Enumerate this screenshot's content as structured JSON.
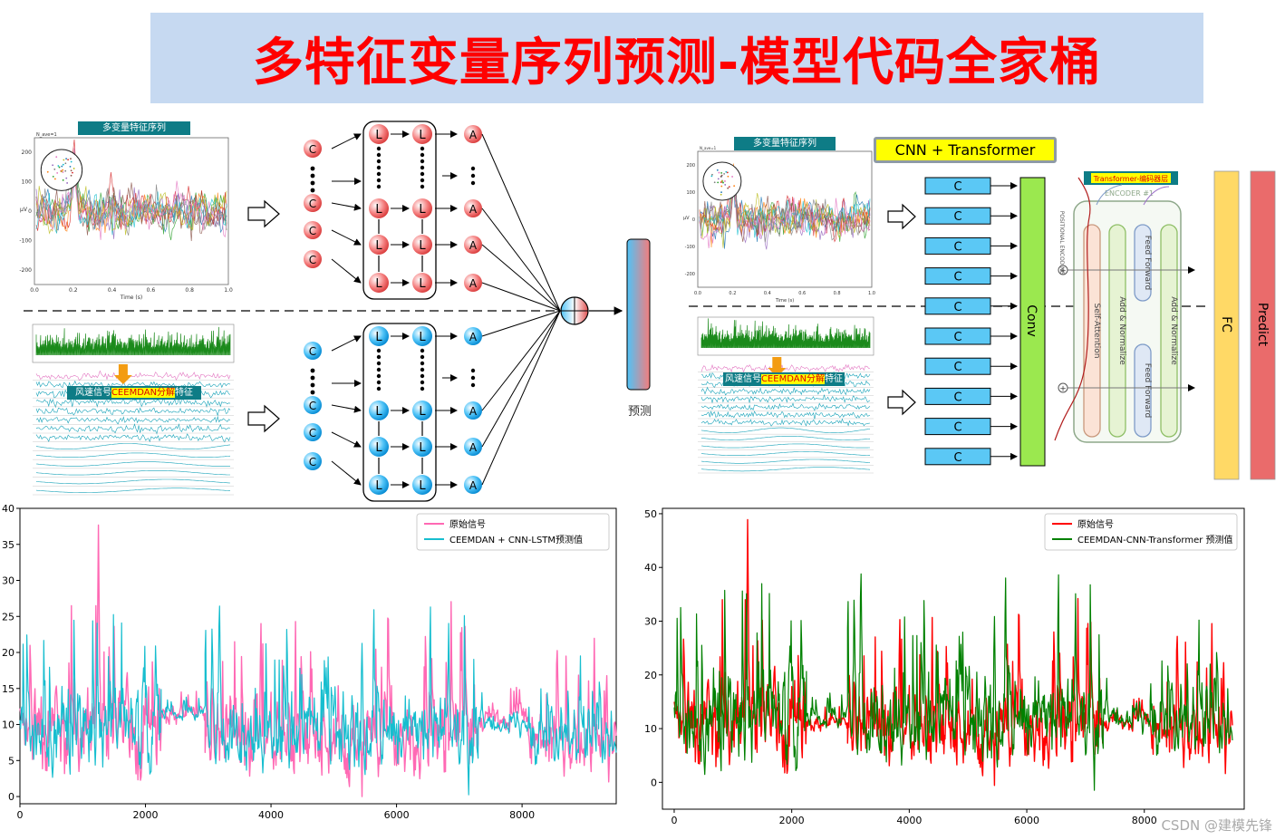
{
  "banner": {
    "title": "多特征变量序列预测-模型代码全家桶"
  },
  "left_top": {
    "eeg_tag": "多变量特征序列",
    "eeg_axis": {
      "yticks": [
        "200",
        "100",
        "0",
        "-100",
        "-200"
      ],
      "xticks": [
        "0.0",
        "0.2",
        "0.4",
        "0.6",
        "0.8",
        "1.0"
      ],
      "xlabel": "Time (s)",
      "ylabel": "μV",
      "corner": "N_ave=1"
    },
    "ceemdan_tag_prefix": "风速信号",
    "ceemdan_tag_highlight": "CEEMDAN分解",
    "ceemdan_tag_suffix": "特征"
  },
  "lstm_block": {
    "c": "C",
    "l": "L",
    "a": "A",
    "dots": "⋮",
    "output_label": "预测"
  },
  "right_top": {
    "title": "CNN + Transformer",
    "eeg_tag": "多变量特征序列",
    "ceemdan_tag_prefix": "风速信号",
    "ceemdan_tag_highlight": "CEEMDAN分解",
    "ceemdan_tag_suffix": "特征",
    "c_label": "C",
    "conv_label": "Conv",
    "encoder_tag": "Transformer-编码器层",
    "encoder_name": "ENCODER #1",
    "positional": "POSITIONAL ENCODING",
    "layers": [
      "Self-Attention",
      "Add & Normalize",
      "Feed Forward",
      "Add & Normalize",
      "Feed Forward"
    ],
    "fc_label": "FC",
    "predict_label": "Predict",
    "colors": {
      "fc": "#ffd966",
      "predict": "#ea6b6b",
      "conv": "#9be84f",
      "cbox": "#5bc8f5"
    }
  },
  "chart_data": [
    {
      "type": "line",
      "title": "",
      "xlabel": "",
      "ylabel": "",
      "xlim": [
        0,
        9500
      ],
      "ylim": [
        -1,
        40
      ],
      "xticks": [
        0,
        2000,
        4000,
        6000,
        8000
      ],
      "yticks": [
        0,
        5,
        10,
        15,
        20,
        25,
        30,
        35,
        40
      ],
      "legend_position": "top-right",
      "series": [
        {
          "name": "原始信号",
          "color": "#ff69b4",
          "segments": [
            {
              "x": [
                0,
                2250
              ],
              "mean": 10,
              "spread": 15
            },
            {
              "x": [
                2250,
                2950
              ],
              "mean": 11.5,
              "spread": 3
            },
            {
              "x": [
                2950,
                7300
              ],
              "mean": 9,
              "spread": 14
            },
            {
              "x": [
                7300,
                8100
              ],
              "mean": 11,
              "spread": 4
            },
            {
              "x": [
                8100,
                9500
              ],
              "mean": 8,
              "spread": 10
            }
          ]
        },
        {
          "name": "CEEMDAN + CNN-LSTM预测值",
          "color": "#17becf",
          "segments": [
            {
              "x": [
                0,
                2250
              ],
              "mean": 10,
              "spread": 14
            },
            {
              "x": [
                2250,
                2950
              ],
              "mean": 11.5,
              "spread": 2
            },
            {
              "x": [
                2950,
                7300
              ],
              "mean": 9,
              "spread": 13
            },
            {
              "x": [
                7300,
                8100
              ],
              "mean": 10,
              "spread": 3
            },
            {
              "x": [
                8100,
                9500
              ],
              "mean": 8,
              "spread": 9
            }
          ]
        }
      ]
    },
    {
      "type": "line",
      "title": "",
      "xlabel": "",
      "ylabel": "",
      "xlim": [
        -200,
        9700
      ],
      "ylim": [
        -5,
        51
      ],
      "xticks": [
        0,
        2000,
        4000,
        6000,
        8000
      ],
      "yticks": [
        0,
        10,
        20,
        30,
        40,
        50
      ],
      "legend_position": "top-right",
      "series": [
        {
          "name": "原始信号",
          "color": "#ff0000",
          "segments": [
            {
              "x": [
                0,
                2250
              ],
              "mean": 12,
              "spread": 20
            },
            {
              "x": [
                2250,
                2950
              ],
              "mean": 11,
              "spread": 3
            },
            {
              "x": [
                2950,
                7300
              ],
              "mean": 11,
              "spread": 18
            },
            {
              "x": [
                7300,
                8100
              ],
              "mean": 11.5,
              "spread": 4
            },
            {
              "x": [
                8100,
                9500
              ],
              "mean": 10,
              "spread": 14
            }
          ]
        },
        {
          "name": "CEEMDAN-CNN-Transformer 预测值",
          "color": "#008000",
          "segments": [
            {
              "x": [
                0,
                2250
              ],
              "mean": 13,
              "spread": 22
            },
            {
              "x": [
                2250,
                2950
              ],
              "mean": 12,
              "spread": 4
            },
            {
              "x": [
                2950,
                7300
              ],
              "mean": 12,
              "spread": 20
            },
            {
              "x": [
                7300,
                8100
              ],
              "mean": 12,
              "spread": 5
            },
            {
              "x": [
                8100,
                9500
              ],
              "mean": 11,
              "spread": 15
            }
          ]
        }
      ]
    }
  ],
  "watermark": "CSDN @建模先锋"
}
